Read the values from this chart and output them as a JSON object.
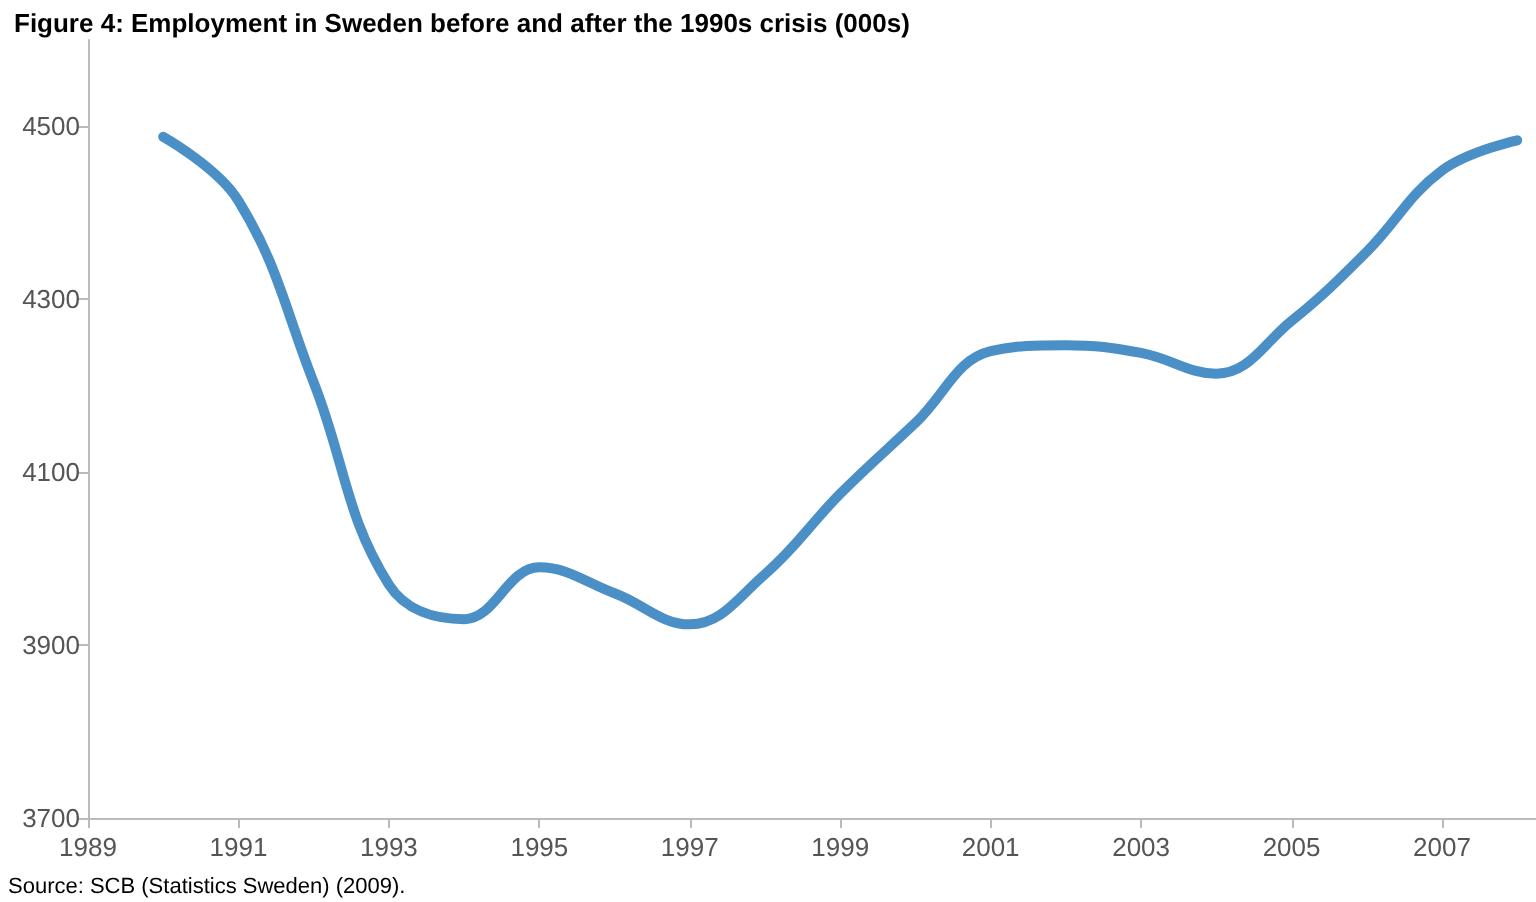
{
  "chart_data": {
    "type": "line",
    "title": "Figure 4: Employment in Sweden before and after the 1990s crisis (000s)",
    "x": [
      1990,
      1991,
      1992,
      1993,
      1994,
      1995,
      1996,
      1997,
      1998,
      1999,
      2000,
      2001,
      2002,
      2003,
      2004,
      2005,
      2006,
      2007,
      2008
    ],
    "series": [
      {
        "color": "#4a8fc6",
        "values": [
          4488,
          4414,
          4204,
          3970,
          3930,
          3990,
          3960,
          3924,
          3982,
          4075,
          4157,
          4240,
          4247,
          4238,
          4214,
          4275,
          4355,
          4449,
          4484
        ]
      }
    ],
    "xlim": [
      1989,
      2008.25
    ],
    "xticks": [
      1989,
      1991,
      1993,
      1995,
      1997,
      1999,
      2001,
      2003,
      2005,
      2007
    ],
    "ylim": [
      3700,
      4600
    ],
    "yticks": [
      3700,
      3900,
      4100,
      4300,
      4500
    ],
    "grid": false,
    "marker": "none",
    "line_style": "solid",
    "annotations": [
      "Source: SCB (Statistics Sweden) (2009)."
    ]
  }
}
